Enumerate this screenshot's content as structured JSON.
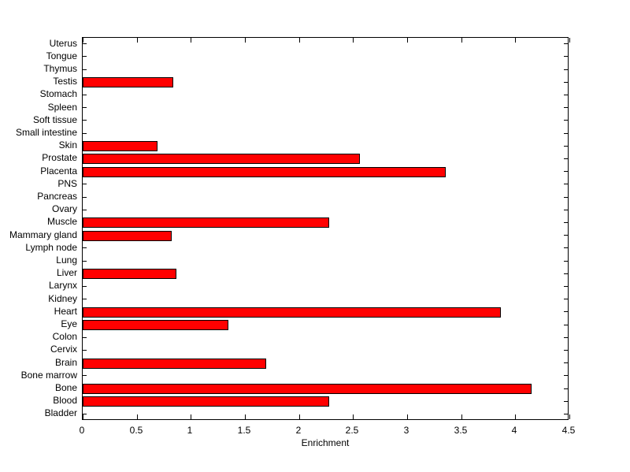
{
  "figure": {
    "background": "#ffffff"
  },
  "chart_data": {
    "type": "bar",
    "orientation": "horizontal",
    "title": "",
    "xlabel": "Enrichment",
    "ylabel": "",
    "xlim": [
      0,
      4.5
    ],
    "xticks": [
      0,
      0.5,
      1,
      1.5,
      2,
      2.5,
      3,
      3.5,
      4,
      4.5
    ],
    "xtick_labels": [
      "0",
      "0.5",
      "1",
      "1.5",
      "2",
      "2.5",
      "3",
      "3.5",
      "4",
      "4.5"
    ],
    "categories_top_to_bottom": [
      "Uterus",
      "Tongue",
      "Thymus",
      "Testis",
      "Stomach",
      "Spleen",
      "Soft tissue",
      "Small intestine",
      "Skin",
      "Prostate",
      "Placenta",
      "PNS",
      "Pancreas",
      "Ovary",
      "Muscle",
      "Mammary gland",
      "Lymph node",
      "Lung",
      "Liver",
      "Larynx",
      "Kidney",
      "Heart",
      "Eye",
      "Colon",
      "Cervix",
      "Brain",
      "Bone marrow",
      "Bone",
      "Blood",
      "Bladder"
    ],
    "values": [
      0,
      0,
      0,
      0.84,
      0,
      0,
      0,
      0,
      0.69,
      2.56,
      3.36,
      0,
      0,
      0,
      2.28,
      0.82,
      0,
      0,
      0.87,
      0,
      0,
      3.87,
      1.35,
      0,
      0,
      1.7,
      0,
      4.15,
      2.28,
      0
    ],
    "bar_color": "#ff0000",
    "bar_edge_color": "#000000",
    "axis_color": "#000000",
    "grid": false,
    "legend": null
  }
}
